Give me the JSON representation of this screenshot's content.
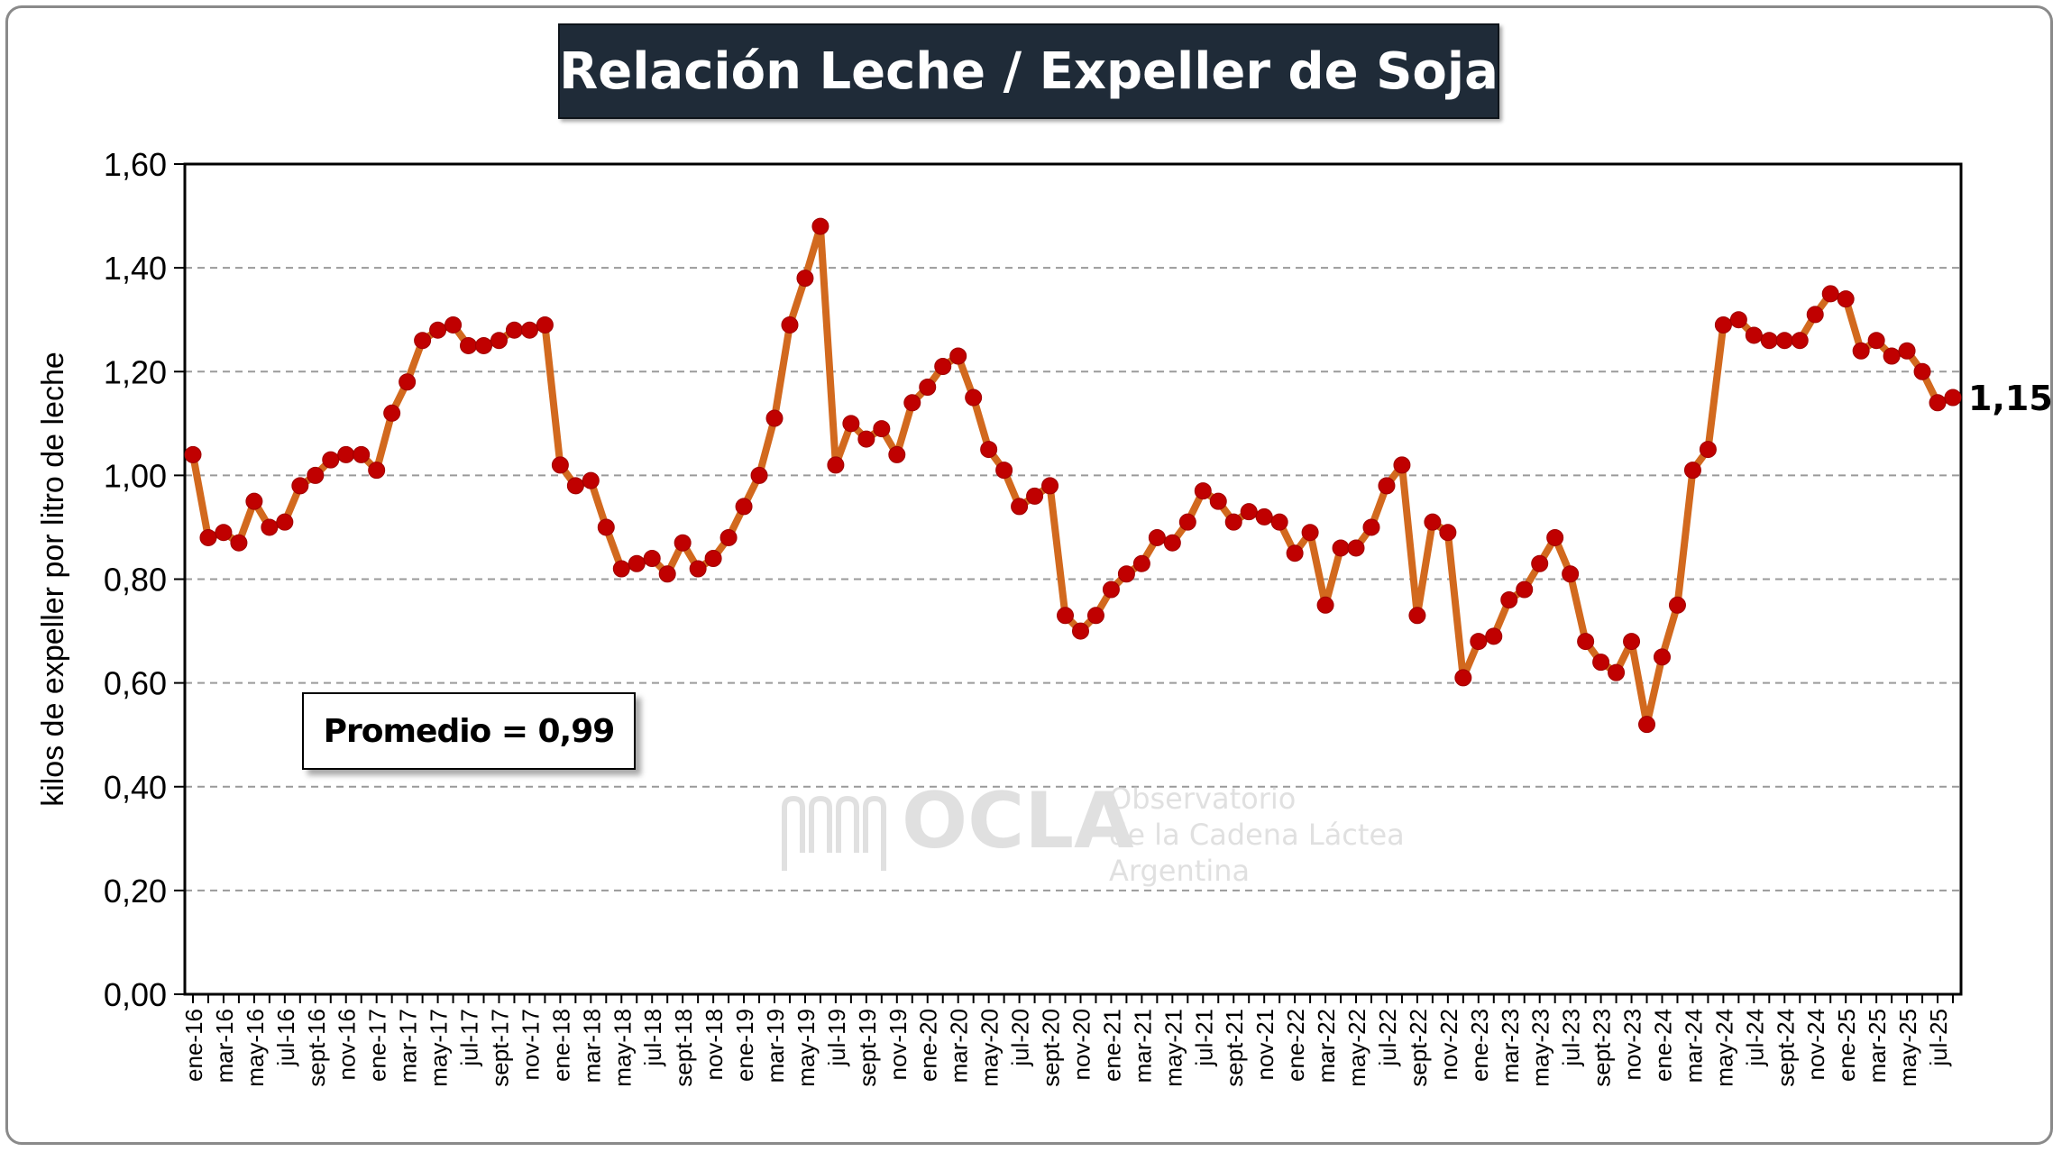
{
  "chart_data": {
    "type": "line",
    "title": "Relación Leche / Expeller de Soja",
    "ylabel": "kilos de expeller por litro de leche",
    "xlabel": "",
    "ylim": [
      0,
      1.6
    ],
    "yticks": [
      "0,00",
      "0,20",
      "0,40",
      "0,60",
      "0,80",
      "1,00",
      "1,20",
      "1,40",
      "1,60"
    ],
    "grid": true,
    "legend": "none",
    "series_color": "#d2691e",
    "marker_color": "#c00000",
    "x": [
      "ene-16",
      "feb-16",
      "mar-16",
      "abr-16",
      "may-16",
      "jun-16",
      "jul-16",
      "ago-16",
      "sept-16",
      "oct-16",
      "nov-16",
      "dic-16",
      "ene-17",
      "feb-17",
      "mar-17",
      "abr-17",
      "may-17",
      "jun-17",
      "jul-17",
      "ago-17",
      "sept-17",
      "oct-17",
      "nov-17",
      "dic-17",
      "ene-18",
      "feb-18",
      "mar-18",
      "abr-18",
      "may-18",
      "jun-18",
      "jul-18",
      "ago-18",
      "sept-18",
      "oct-18",
      "nov-18",
      "dic-18",
      "ene-19",
      "feb-19",
      "mar-19",
      "abr-19",
      "may-19",
      "jun-19",
      "jul-19",
      "ago-19",
      "sept-19",
      "oct-19",
      "nov-19",
      "dic-19",
      "ene-20",
      "feb-20",
      "mar-20",
      "abr-20",
      "may-20",
      "jun-20",
      "jul-20",
      "ago-20",
      "sept-20",
      "oct-20",
      "nov-20",
      "dic-20",
      "ene-21",
      "feb-21",
      "mar-21",
      "abr-21",
      "may-21",
      "jun-21",
      "jul-21",
      "ago-21",
      "sept-21",
      "oct-21",
      "nov-21",
      "dic-21",
      "ene-22",
      "feb-22",
      "mar-22",
      "abr-22",
      "may-22",
      "jun-22",
      "jul-22",
      "ago-22",
      "sept-22",
      "oct-22",
      "nov-22",
      "dic-22",
      "ene-23",
      "feb-23",
      "mar-23",
      "abr-23",
      "may-23",
      "jun-23",
      "jul-23",
      "ago-23",
      "sept-23",
      "oct-23",
      "nov-23",
      "dic-23",
      "ene-24",
      "feb-24",
      "mar-24",
      "abr-24",
      "may-24",
      "jun-24",
      "jul-24",
      "ago-24",
      "sept-24",
      "oct-24",
      "nov-24",
      "dic-24",
      "ene-25",
      "feb-25",
      "mar-25",
      "abr-25",
      "may-25",
      "jun-25",
      "jul-25",
      "ago-25"
    ],
    "tick_labels": [
      "ene-16",
      "mar-16",
      "may-16",
      "jul-16",
      "sept-16",
      "nov-16",
      "ene-17",
      "mar-17",
      "may-17",
      "jul-17",
      "sept-17",
      "nov-17",
      "ene-18",
      "mar-18",
      "may-18",
      "jul-18",
      "sept-18",
      "nov-18",
      "ene-19",
      "mar-19",
      "may-19",
      "jul-19",
      "sept-19",
      "nov-19",
      "ene-20",
      "mar-20",
      "may-20",
      "jul-20",
      "sept-20",
      "nov-20",
      "ene-21",
      "mar-21",
      "may-21",
      "jul-21",
      "sept-21",
      "nov-21",
      "ene-22",
      "mar-22",
      "may-22",
      "jul-22",
      "sept-22",
      "nov-22",
      "ene-23",
      "mar-23",
      "may-23",
      "jul-23",
      "sept-23",
      "nov-23",
      "ene-24",
      "mar-24",
      "may-24",
      "jul-24",
      "sept-24",
      "nov-24",
      "ene-25",
      "mar-25",
      "may-25",
      "jul-25"
    ],
    "values": [
      1.04,
      0.88,
      0.89,
      0.87,
      0.95,
      0.9,
      0.91,
      0.98,
      1.0,
      1.03,
      1.04,
      1.04,
      1.01,
      1.12,
      1.18,
      1.26,
      1.28,
      1.29,
      1.25,
      1.25,
      1.26,
      1.28,
      1.28,
      1.29,
      1.02,
      0.98,
      0.99,
      0.9,
      0.82,
      0.83,
      0.84,
      0.81,
      0.87,
      0.82,
      0.84,
      0.88,
      0.94,
      1.0,
      1.11,
      1.29,
      1.38,
      1.48,
      1.02,
      1.1,
      1.07,
      1.09,
      1.04,
      1.14,
      1.17,
      1.21,
      1.23,
      1.15,
      1.05,
      1.01,
      0.94,
      0.96,
      0.98,
      0.73,
      0.7,
      0.73,
      0.78,
      0.81,
      0.83,
      0.88,
      0.87,
      0.91,
      0.97,
      0.95,
      0.91,
      0.93,
      0.92,
      0.91,
      0.85,
      0.89,
      0.75,
      0.86,
      0.86,
      0.9,
      0.98,
      1.02,
      0.73,
      0.91,
      0.89,
      0.61,
      0.68,
      0.69,
      0.76,
      0.78,
      0.83,
      0.88,
      0.81,
      0.68,
      0.64,
      0.62,
      0.68,
      0.52,
      0.65,
      0.75,
      1.01,
      1.05,
      1.29,
      1.3,
      1.27,
      1.26,
      1.26,
      1.26,
      1.31,
      1.35,
      1.34,
      1.24,
      1.26,
      1.23,
      1.24,
      1.2,
      1.14,
      1.15
    ],
    "last_value_label": "1,15",
    "annotation": "Promedio = 0,99"
  },
  "watermark": {
    "name": "OCLA",
    "line1": "Observatorio",
    "line2": "de la Cadena Láctea",
    "line3": "Argentina"
  }
}
